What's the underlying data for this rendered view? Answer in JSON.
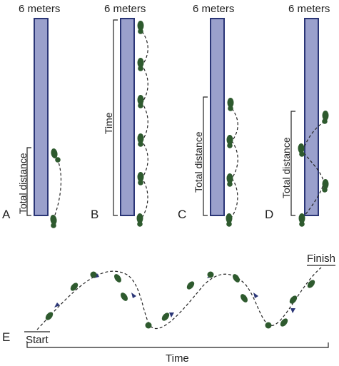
{
  "panels": [
    {
      "letter": "A",
      "top_label": "6 meters",
      "side_label": "Total distance"
    },
    {
      "letter": "B",
      "top_label": "6 meters",
      "side_label": "Time"
    },
    {
      "letter": "C",
      "top_label": "6 meters",
      "side_label": "Total distance"
    },
    {
      "letter": "D",
      "top_label": "6 meters",
      "side_label": "Total distance"
    }
  ],
  "bottom": {
    "letter": "E",
    "start_label": "Start",
    "finish_label": "Finish",
    "time_label": "Time"
  },
  "colors": {
    "bar_fill": "#9aa0cc",
    "bar_stroke": "#2a3576",
    "footprint": "#2e5a2e",
    "arrow": "#2a3576"
  }
}
